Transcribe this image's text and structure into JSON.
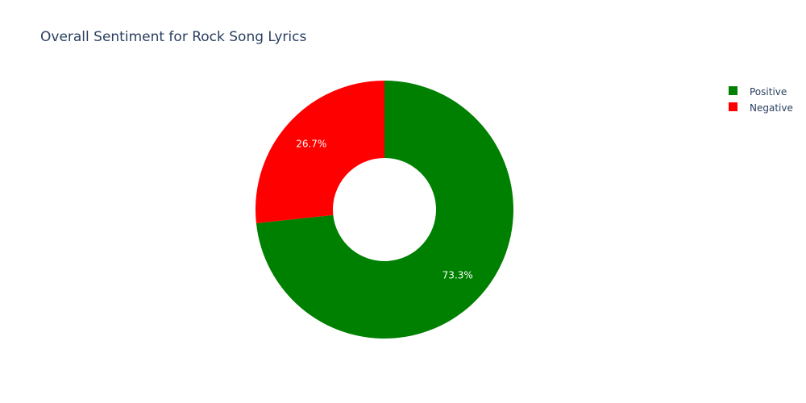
{
  "chart_data": {
    "type": "pie",
    "donut": true,
    "title": "Overall Sentiment for Rock Song Lyrics",
    "slices": [
      {
        "label": "Positive",
        "value": 73.3,
        "text": "73.3%",
        "color": "#008000"
      },
      {
        "label": "Negative",
        "value": 26.7,
        "text": "26.7%",
        "color": "#ff0000"
      }
    ],
    "legend": {
      "position": "top-right",
      "items": [
        "Positive",
        "Negative"
      ]
    },
    "text_color": "#2a3f5f"
  }
}
